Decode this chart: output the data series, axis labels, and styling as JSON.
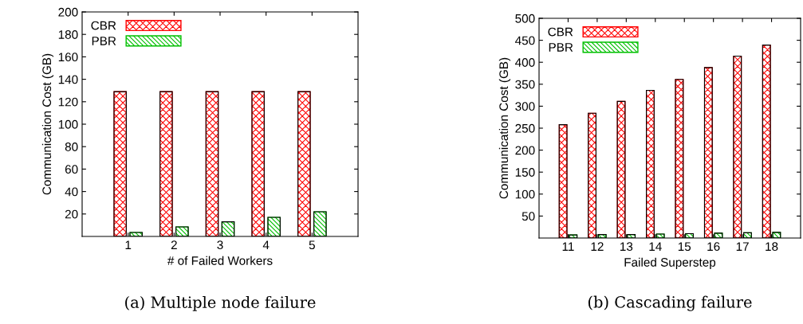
{
  "chart_data": [
    {
      "type": "bar",
      "xlabel": "# of Failed Workers",
      "ylabel": "Communication Cost (GB)",
      "categories": [
        "1",
        "2",
        "3",
        "4",
        "5"
      ],
      "series": [
        {
          "name": "CBR",
          "color": "#ff0000",
          "values": [
            129,
            129,
            129,
            129,
            129
          ]
        },
        {
          "name": "PBR",
          "color": "#00c000",
          "values": [
            3.5,
            8.5,
            13,
            17,
            22
          ]
        }
      ],
      "ylim": [
        0,
        200
      ],
      "yticks": [
        20,
        40,
        60,
        80,
        100,
        120,
        140,
        160,
        180,
        200
      ],
      "legend": "top left",
      "grid": false,
      "annotations": [
        "(a) Multiple node failure"
      ]
    },
    {
      "type": "bar",
      "xlabel": "Failed Superstep",
      "ylabel": "Communication Cost (GB)",
      "categories": [
        "11",
        "12",
        "13",
        "14",
        "15",
        "16",
        "17",
        "18"
      ],
      "series": [
        {
          "name": "CBR",
          "color": "#ff0000",
          "values": [
            258,
            284,
            311,
            336,
            361,
            388,
            414,
            439
          ]
        },
        {
          "name": "PBR",
          "color": "#00c000",
          "values": [
            7,
            8,
            8,
            9,
            10,
            11,
            12,
            13
          ]
        }
      ],
      "ylim": [
        0,
        500
      ],
      "yticks": [
        50,
        100,
        150,
        200,
        250,
        300,
        350,
        400,
        450,
        500
      ],
      "legend": "top left",
      "grid": false,
      "annotations": [
        "(b) Cascading failure"
      ]
    }
  ]
}
